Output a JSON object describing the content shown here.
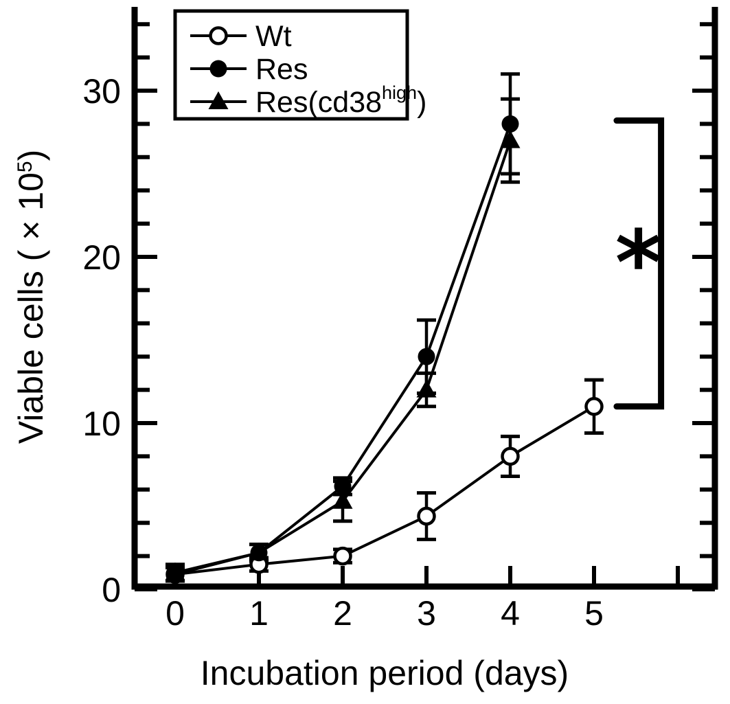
{
  "figure": {
    "background": "#ffffff",
    "foreground": "#000000"
  },
  "chart_data": {
    "type": "line",
    "title": "",
    "xlabel": "Incubation period (days)",
    "ylabel": "Viable cells ( × 10^5 )",
    "ylabel_parts": {
      "pre": "Viable cells ( × 10",
      "sup": "5",
      "post": ")"
    },
    "x_tick_labels": [
      "0",
      "1",
      "2",
      "3",
      "4",
      "5"
    ],
    "x_ticks": [
      0,
      1,
      2,
      3,
      4,
      5
    ],
    "x_extra_unlabeled_ticks": [
      6
    ],
    "y_major_ticks": [
      0,
      10,
      20,
      30
    ],
    "y_tick_labels": [
      "0",
      "10",
      "20",
      "30"
    ],
    "y_minor_step": 2,
    "y_minor_max": 34,
    "xlim": [
      -0.5,
      6.5
    ],
    "ylim": [
      0,
      35
    ],
    "grid": false,
    "series": [
      {
        "name": "Wt",
        "marker": "open-circle",
        "x": [
          0,
          1,
          2,
          3,
          4,
          5
        ],
        "y": [
          0.9,
          1.5,
          2,
          4.4,
          8,
          11
        ],
        "err": [
          0.4,
          0.4,
          0.4,
          1.4,
          1.2,
          1.6
        ]
      },
      {
        "name": "Res",
        "marker": "filled-circle",
        "x": [
          0,
          1,
          2,
          3,
          4
        ],
        "y": [
          0.9,
          2.2,
          6.2,
          14,
          28
        ],
        "err": [
          0.4,
          0.5,
          0.5,
          2.2,
          3
        ]
      },
      {
        "name": "Res(cd38high)",
        "marker": "filled-triangle",
        "x": [
          0,
          1,
          2,
          3,
          4
        ],
        "y": [
          1,
          2.2,
          5.3,
          12,
          27
        ],
        "err": [
          0.5,
          0.5,
          1.2,
          1,
          2.5
        ]
      }
    ],
    "legend": {
      "position": "top-left",
      "border": true,
      "items": [
        {
          "marker": "open-circle",
          "label_pre": "Wt",
          "label_sup": "",
          "label_post": ""
        },
        {
          "marker": "filled-circle",
          "label_pre": "Res",
          "label_sup": "",
          "label_post": ""
        },
        {
          "marker": "filled-triangle",
          "label_pre": "Res(cd38",
          "label_sup": "high",
          "label_post": ")"
        }
      ]
    },
    "annotation": {
      "type": "significance-bracket",
      "label": "*",
      "x_day": 5.8,
      "x_tip_day": 5.27,
      "y_from": 11,
      "y_to": 28.2,
      "label_x_day": 5.53,
      "label_y_value": 20.5
    }
  }
}
